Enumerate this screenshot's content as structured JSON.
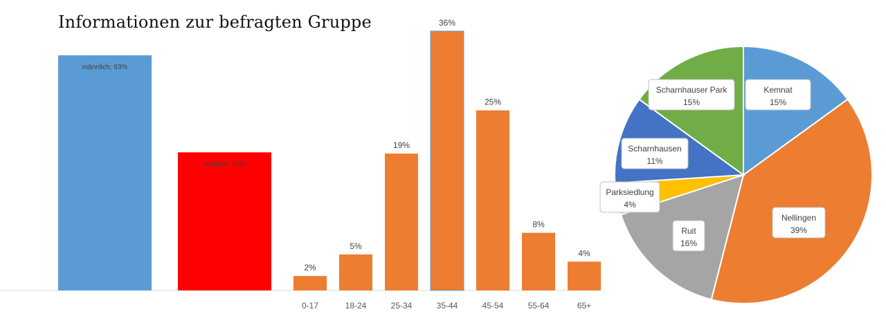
{
  "title": "Informationen zur befragten Gruppe",
  "chart_data": [
    {
      "type": "bar",
      "name": "gender",
      "categories": [
        "männlich",
        "weiblich"
      ],
      "values": [
        63,
        37
      ],
      "data_labels": [
        "männlich; 63%",
        "weiblich; 37%"
      ],
      "colors": [
        "#5B9BD5",
        "#FF0000"
      ],
      "ylim": [
        0,
        63
      ],
      "label_position": "inside-top"
    },
    {
      "type": "bar",
      "name": "age",
      "categories": [
        "0-17",
        "18-24",
        "25-34",
        "35-44",
        "45-54",
        "55-64",
        "65+"
      ],
      "values": [
        2,
        5,
        19,
        36,
        25,
        8,
        4
      ],
      "data_labels": [
        "2%",
        "5%",
        "19%",
        "36%",
        "25%",
        "8%",
        "4%"
      ],
      "color": "#ED7D31",
      "ylim": [
        0,
        36
      ],
      "label_position": "above"
    },
    {
      "type": "pie",
      "name": "location",
      "slices": [
        {
          "label": "Kemnat",
          "value": 15,
          "pct_label": "15%",
          "color": "#5B9BD5"
        },
        {
          "label": "Nellingen",
          "value": 39,
          "pct_label": "39%",
          "color": "#ED7D31"
        },
        {
          "label": "Ruit",
          "value": 16,
          "pct_label": "16%",
          "color": "#A5A5A5"
        },
        {
          "label": "Parksiedlung",
          "value": 4,
          "pct_label": "4%",
          "color": "#FFC000"
        },
        {
          "label": "Scharnhausen",
          "value": 11,
          "pct_label": "11%",
          "color": "#4472C4"
        },
        {
          "label": "Scharnhauser Park",
          "value": 15,
          "pct_label": "15%",
          "color": "#70AD47"
        }
      ]
    }
  ]
}
